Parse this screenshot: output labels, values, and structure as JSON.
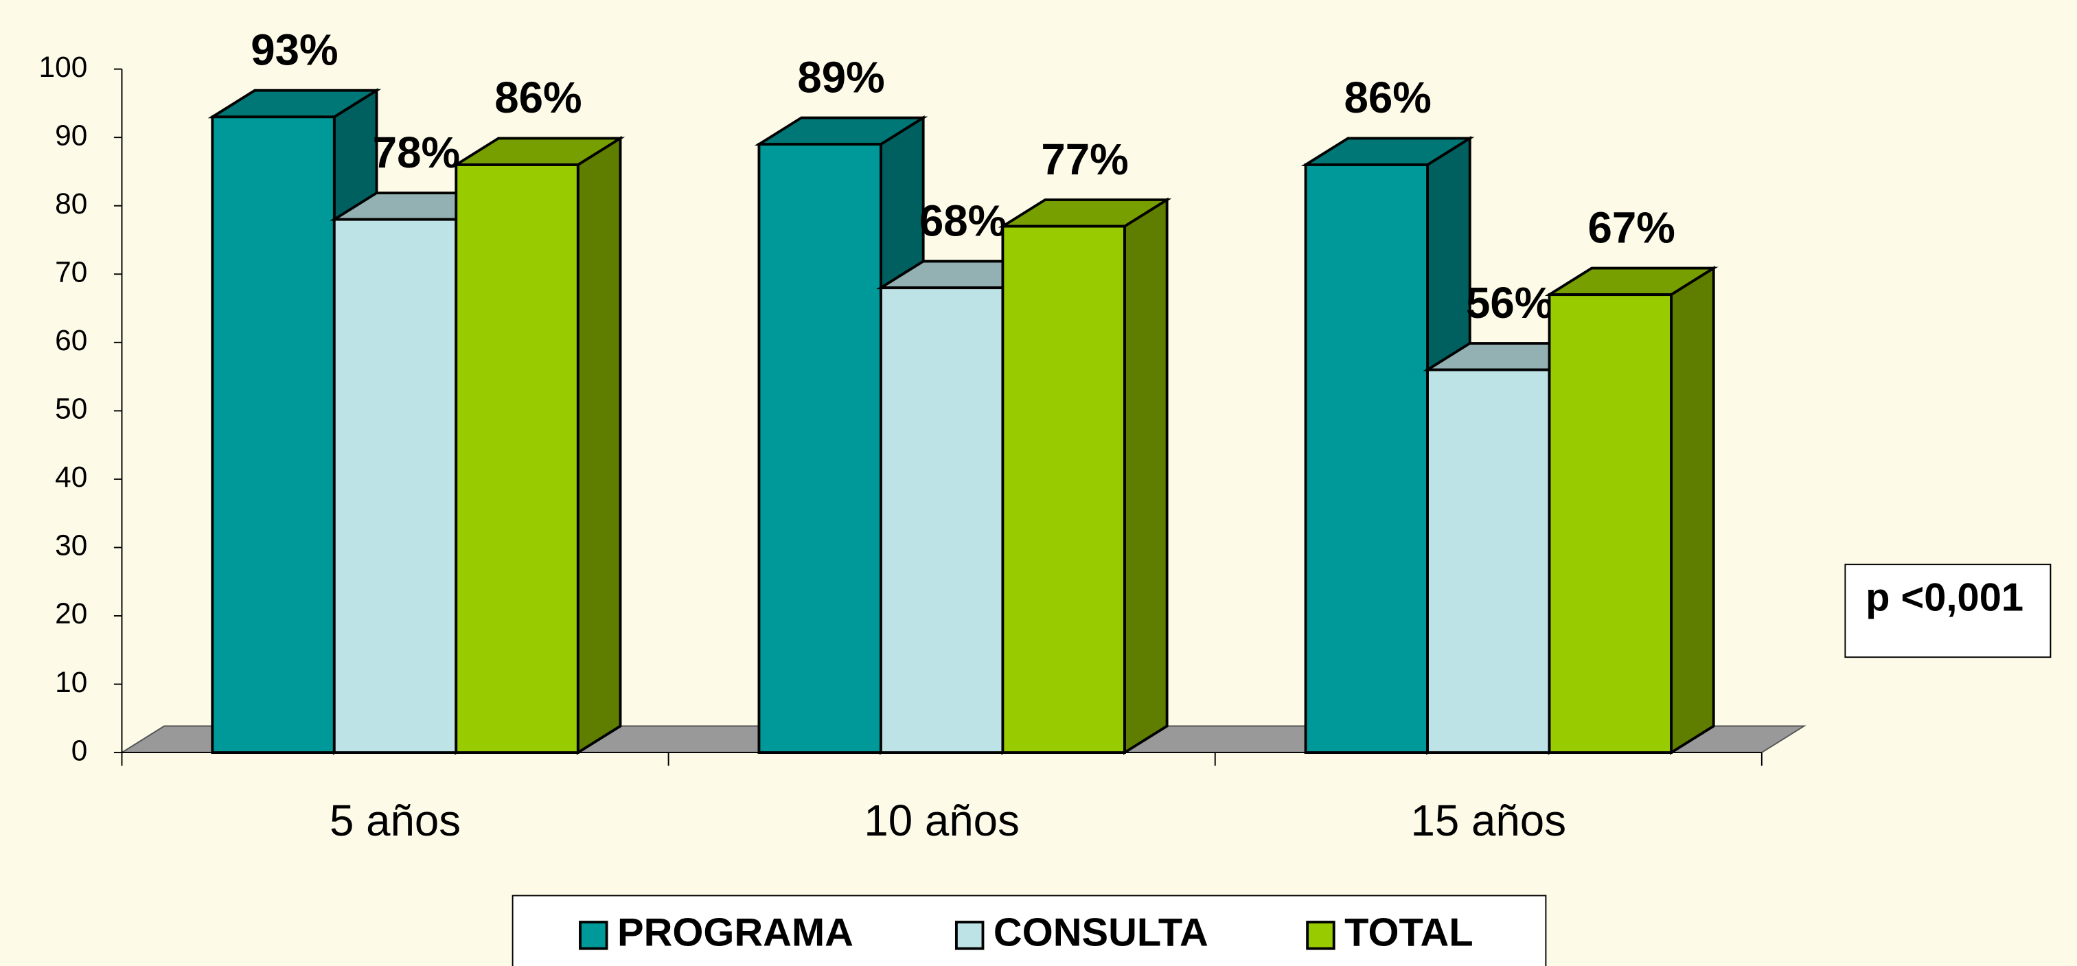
{
  "chart_data": {
    "type": "bar3d",
    "categories": [
      "5 años",
      "10 años",
      "15 años"
    ],
    "series": [
      {
        "name": "PROGRAMA",
        "color": "#009999",
        "values": [
          93,
          89,
          86
        ],
        "value_labels": [
          "93%",
          "89%",
          "86%"
        ]
      },
      {
        "name": "CONSULTA",
        "color": "#bde3e6",
        "values": [
          78,
          68,
          56
        ],
        "value_labels": [
          "78%",
          "68%",
          "56%"
        ]
      },
      {
        "name": "TOTAL",
        "color": "#99cc00",
        "values": [
          86,
          77,
          67
        ],
        "value_labels": [
          "86%",
          "77%",
          "67%"
        ]
      }
    ],
    "ylim": [
      0,
      100
    ],
    "yticks": [
      0,
      10,
      20,
      30,
      40,
      50,
      60,
      70,
      80,
      90,
      100
    ],
    "annotation": "p <0,001",
    "legend": "bottom"
  }
}
